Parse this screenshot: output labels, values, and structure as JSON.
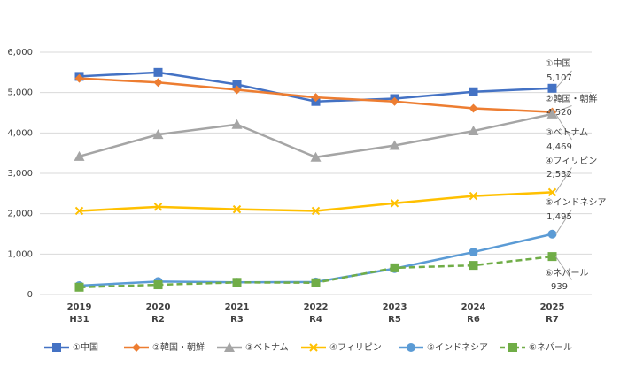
{
  "chart_data": {
    "type": "line",
    "categories": [
      "2019",
      "2020",
      "2021",
      "2022",
      "2023",
      "2024",
      "2025"
    ],
    "sub_categories": [
      "H31",
      "R2",
      "R3",
      "R4",
      "R5",
      "R6",
      "R7"
    ],
    "ylim": [
      0,
      6000
    ],
    "yticks": [
      0,
      {
        "value": 1000,
        "label": "1,000"
      },
      {
        "value": 2000,
        "label": "2,000"
      },
      {
        "value": 3000,
        "label": "3,000"
      },
      {
        "value": 4000,
        "label": "4,000"
      },
      {
        "value": 5000,
        "label": "5,000"
      },
      {
        "value": 6000,
        "label": "6,000"
      }
    ],
    "grid": true,
    "legend": "bottom",
    "series": [
      {
        "name": "①中国",
        "color": "#4472c4",
        "marker": "square",
        "dash": false,
        "values": [
          5400,
          5500,
          5200,
          4780,
          4850,
          5020,
          5107
        ],
        "value_labels": [
          null,
          null,
          null,
          null,
          null,
          null,
          "5,107"
        ]
      },
      {
        "name": "②韓国・朝鮮",
        "color": "#ed7d31",
        "marker": "diamond",
        "dash": false,
        "values": [
          5350,
          5250,
          5070,
          4880,
          4780,
          4610,
          4520
        ],
        "value_labels": [
          null,
          null,
          null,
          null,
          null,
          null,
          "4,520"
        ]
      },
      {
        "name": "③ベトナム",
        "color": "#a5a5a5",
        "marker": "triangle",
        "dash": false,
        "values": [
          3420,
          3960,
          4210,
          3400,
          3690,
          4050,
          4469
        ],
        "value_labels": [
          null,
          null,
          null,
          null,
          null,
          null,
          "4,469"
        ]
      },
      {
        "name": "④フィリピン",
        "color": "#ffc000",
        "marker": "x",
        "dash": false,
        "values": [
          2070,
          2170,
          2110,
          2070,
          2260,
          2440,
          2532
        ],
        "value_labels": [
          null,
          null,
          null,
          null,
          null,
          null,
          "2,532"
        ]
      },
      {
        "name": "⑤インドネシア",
        "color": "#5b9bd5",
        "marker": "circle",
        "dash": false,
        "values": [
          220,
          320,
          300,
          310,
          640,
          1050,
          1495
        ],
        "value_labels": [
          null,
          null,
          null,
          null,
          null,
          null,
          "1,495"
        ]
      },
      {
        "name": "⑥ネパール",
        "color": "#70ad47",
        "marker": "square",
        "dash": true,
        "values": [
          180,
          240,
          300,
          290,
          660,
          720,
          939
        ],
        "value_labels": [
          null,
          null,
          null,
          null,
          null,
          null,
          "939"
        ]
      }
    ]
  }
}
